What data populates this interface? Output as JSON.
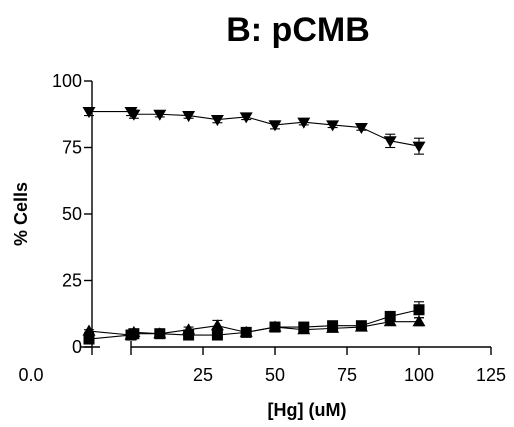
{
  "chart_data": {
    "type": "line",
    "title": "B: pCMB",
    "xlabel": "[Hg] (uM)",
    "ylabel": "% Cells",
    "x_axis": {
      "segments": [
        {
          "range": [
            0,
            1
          ],
          "ticks": [
            0
          ],
          "tick_labels": [
            "0.0"
          ]
        },
        {
          "range": [
            0,
            125
          ],
          "ticks": [
            25,
            50,
            75,
            100,
            125
          ],
          "tick_labels": [
            "25",
            "50",
            "75",
            "100",
            "125"
          ]
        }
      ]
    },
    "y_axis": {
      "range": [
        0,
        100
      ],
      "ticks": [
        0,
        25,
        50,
        75,
        100
      ],
      "tick_labels": [
        "0",
        "25",
        "50",
        "75",
        "100"
      ]
    },
    "grid": false,
    "legend": "none",
    "series": [
      {
        "marker": "triangle-down",
        "baseline": {
          "y": 88.5,
          "err": 1.5
        },
        "points": [
          {
            "x": 0,
            "y": 88.5,
            "err": 1.5
          },
          {
            "x": 1,
            "y": 87.5,
            "err": 1.5
          },
          {
            "x": 10,
            "y": 87.5,
            "err": 1
          },
          {
            "x": 20,
            "y": 87,
            "err": 1
          },
          {
            "x": 30,
            "y": 85.5,
            "err": 1.2
          },
          {
            "x": 40,
            "y": 86.5,
            "err": 1
          },
          {
            "x": 50,
            "y": 83.5,
            "err": 1.5
          },
          {
            "x": 60,
            "y": 84.5,
            "err": 1
          },
          {
            "x": 70,
            "y": 83.5,
            "err": 1
          },
          {
            "x": 80,
            "y": 82.5,
            "err": 1
          },
          {
            "x": 90,
            "y": 77.5,
            "err": 2.5
          },
          {
            "x": 100,
            "y": 75.5,
            "err": 3
          }
        ]
      },
      {
        "marker": "square",
        "baseline": {
          "y": 3,
          "err": 0.5
        },
        "points": [
          {
            "x": 0,
            "y": 4.5,
            "err": 0.5
          },
          {
            "x": 1,
            "y": 5,
            "err": 1
          },
          {
            "x": 10,
            "y": 5,
            "err": 0.5
          },
          {
            "x": 20,
            "y": 4.5,
            "err": 0.5
          },
          {
            "x": 30,
            "y": 4.5,
            "err": 0.5
          },
          {
            "x": 40,
            "y": 5.5,
            "err": 0.5
          },
          {
            "x": 50,
            "y": 7.5,
            "err": 0.5
          },
          {
            "x": 60,
            "y": 7.5,
            "err": 0.5
          },
          {
            "x": 70,
            "y": 8,
            "err": 0.5
          },
          {
            "x": 80,
            "y": 8,
            "err": 0.5
          },
          {
            "x": 90,
            "y": 11.5,
            "err": 1.5
          },
          {
            "x": 100,
            "y": 14,
            "err": 3
          }
        ]
      },
      {
        "marker": "triangle-up",
        "baseline": {
          "y": 6,
          "err": 0.5
        },
        "points": [
          {
            "x": 0,
            "y": 4.5,
            "err": 0.5
          },
          {
            "x": 1,
            "y": 5.5,
            "err": 1
          },
          {
            "x": 10,
            "y": 5,
            "err": 0.5
          },
          {
            "x": 20,
            "y": 6.5,
            "err": 1
          },
          {
            "x": 30,
            "y": 8,
            "err": 2
          },
          {
            "x": 40,
            "y": 5.5,
            "err": 0.5
          },
          {
            "x": 50,
            "y": 7.5,
            "err": 0.5
          },
          {
            "x": 60,
            "y": 6.5,
            "err": 1
          },
          {
            "x": 70,
            "y": 7,
            "err": 0.5
          },
          {
            "x": 80,
            "y": 7.5,
            "err": 0.5
          },
          {
            "x": 90,
            "y": 9.5,
            "err": 1
          },
          {
            "x": 100,
            "y": 9.5,
            "err": 1.5
          }
        ]
      }
    ]
  }
}
